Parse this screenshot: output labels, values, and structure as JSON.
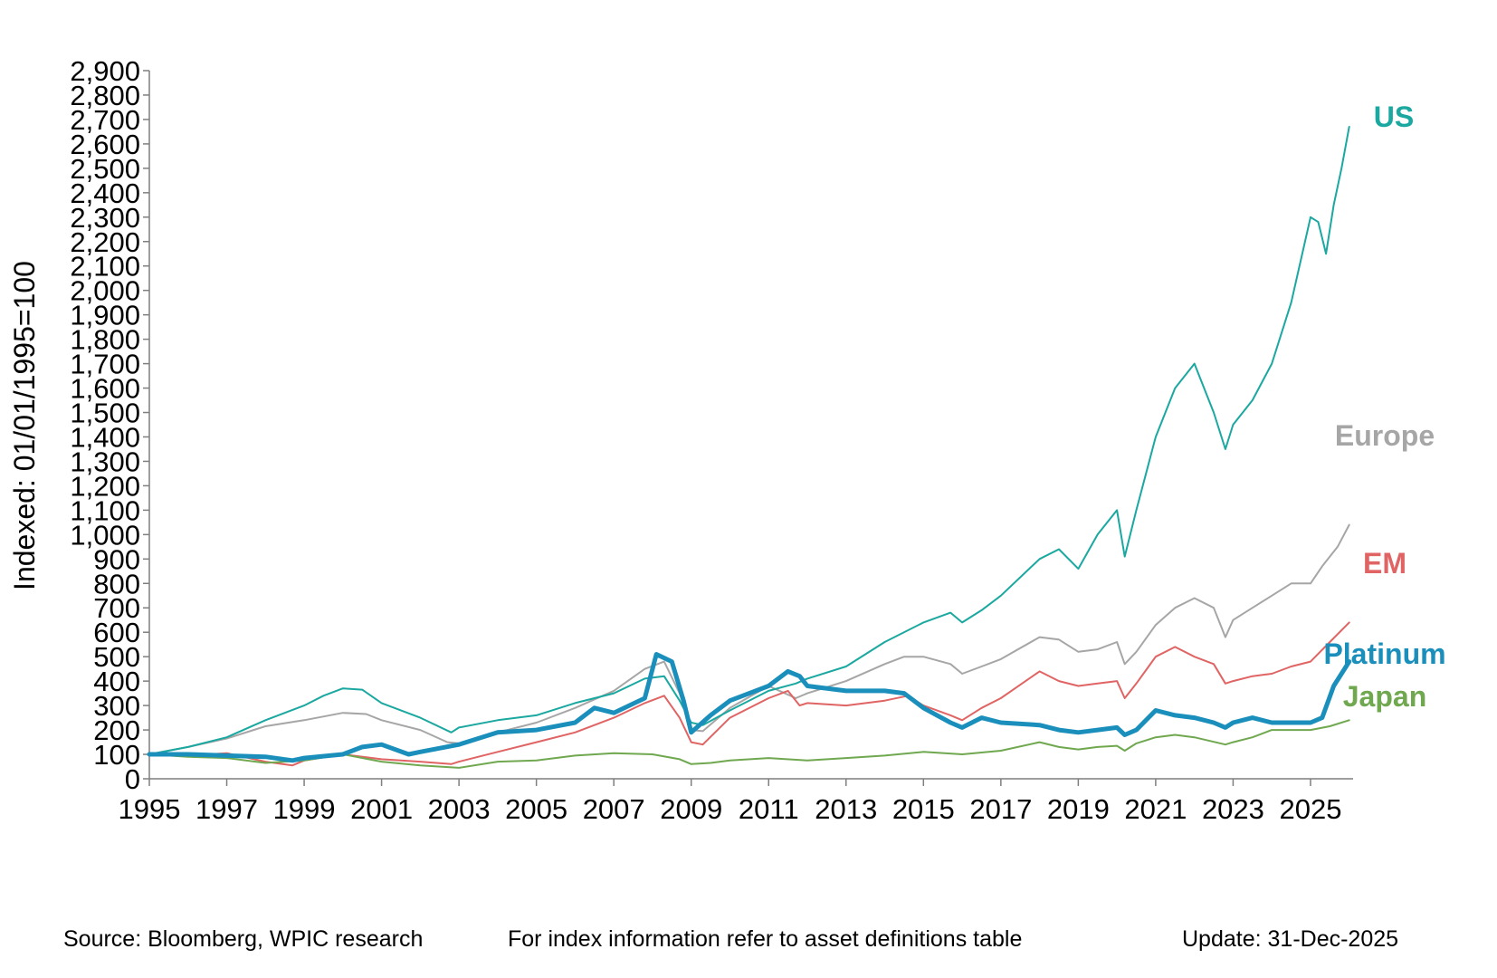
{
  "chart_data": {
    "type": "line",
    "title": "",
    "xlabel": "",
    "ylabel": "Indexed: 01/01/1995=100",
    "xlim": [
      1995,
      2026.1
    ],
    "ylim": [
      0,
      2900
    ],
    "x_ticks": [
      "1995",
      "1997",
      "1999",
      "2001",
      "2003",
      "2005",
      "2007",
      "2009",
      "2011",
      "2013",
      "2015",
      "2017",
      "2019",
      "2021",
      "2023",
      "2025"
    ],
    "y_ticks": [
      "0",
      "100",
      "200",
      "300",
      "400",
      "500",
      "600",
      "700",
      "800",
      "900",
      "1,000",
      "1,100",
      "1,200",
      "1,300",
      "1,400",
      "1,500",
      "1,600",
      "1,700",
      "1,800",
      "1,900",
      "2,000",
      "2,100",
      "2,200",
      "2,300",
      "2,400",
      "2,500",
      "2,600",
      "2,700",
      "2,800",
      "2,900"
    ],
    "legend_placement": "right-end labels",
    "series": [
      {
        "name": "Europe",
        "color": "#a6a6a6",
        "width": 2,
        "points": [
          [
            1995,
            100
          ],
          [
            1996,
            130
          ],
          [
            1997,
            165
          ],
          [
            1998,
            215
          ],
          [
            1999,
            240
          ],
          [
            2000,
            270
          ],
          [
            2000.6,
            265
          ],
          [
            2001,
            240
          ],
          [
            2002,
            200
          ],
          [
            2002.7,
            150
          ],
          [
            2003,
            145
          ],
          [
            2004,
            190
          ],
          [
            2005,
            230
          ],
          [
            2006,
            290
          ],
          [
            2007,
            360
          ],
          [
            2007.8,
            450
          ],
          [
            2008.3,
            480
          ],
          [
            2008.7,
            350
          ],
          [
            2009.0,
            200
          ],
          [
            2009.3,
            195
          ],
          [
            2010,
            290
          ],
          [
            2011,
            380
          ],
          [
            2011.7,
            330
          ],
          [
            2012,
            350
          ],
          [
            2013,
            400
          ],
          [
            2014,
            470
          ],
          [
            2014.5,
            500
          ],
          [
            2015,
            500
          ],
          [
            2015.7,
            470
          ],
          [
            2016,
            430
          ],
          [
            2016.5,
            460
          ],
          [
            2017,
            490
          ],
          [
            2018,
            580
          ],
          [
            2018.5,
            570
          ],
          [
            2019,
            520
          ],
          [
            2019.5,
            530
          ],
          [
            2020,
            560
          ],
          [
            2020.2,
            470
          ],
          [
            2020.5,
            520
          ],
          [
            2021,
            630
          ],
          [
            2021.5,
            700
          ],
          [
            2022,
            740
          ],
          [
            2022.5,
            700
          ],
          [
            2022.8,
            580
          ],
          [
            2023,
            650
          ],
          [
            2023.5,
            700
          ],
          [
            2024,
            750
          ],
          [
            2024.5,
            800
          ],
          [
            2025,
            800
          ],
          [
            2025.3,
            870
          ],
          [
            2025.7,
            950
          ],
          [
            2026,
            1040
          ]
        ]
      },
      {
        "name": "EM",
        "color": "#e06464",
        "width": 2,
        "points": [
          [
            1995,
            100
          ],
          [
            1996,
            95
          ],
          [
            1997,
            105
          ],
          [
            1998,
            70
          ],
          [
            1998.7,
            55
          ],
          [
            1999,
            75
          ],
          [
            2000,
            100
          ],
          [
            2001,
            80
          ],
          [
            2002,
            70
          ],
          [
            2002.8,
            60
          ],
          [
            2003,
            70
          ],
          [
            2004,
            110
          ],
          [
            2005,
            150
          ],
          [
            2006,
            190
          ],
          [
            2007,
            250
          ],
          [
            2007.8,
            310
          ],
          [
            2008.3,
            340
          ],
          [
            2008.7,
            250
          ],
          [
            2009.0,
            150
          ],
          [
            2009.3,
            140
          ],
          [
            2010,
            250
          ],
          [
            2011,
            330
          ],
          [
            2011.5,
            360
          ],
          [
            2011.8,
            300
          ],
          [
            2012,
            310
          ],
          [
            2013,
            300
          ],
          [
            2014,
            320
          ],
          [
            2014.6,
            340
          ],
          [
            2015,
            300
          ],
          [
            2015.7,
            260
          ],
          [
            2016,
            240
          ],
          [
            2016.5,
            290
          ],
          [
            2017,
            330
          ],
          [
            2018,
            440
          ],
          [
            2018.5,
            400
          ],
          [
            2019,
            380
          ],
          [
            2019.5,
            390
          ],
          [
            2020,
            400
          ],
          [
            2020.2,
            330
          ],
          [
            2020.5,
            390
          ],
          [
            2021,
            500
          ],
          [
            2021.5,
            540
          ],
          [
            2022,
            500
          ],
          [
            2022.5,
            470
          ],
          [
            2022.8,
            390
          ],
          [
            2023,
            400
          ],
          [
            2023.5,
            420
          ],
          [
            2024,
            430
          ],
          [
            2024.5,
            460
          ],
          [
            2025,
            480
          ],
          [
            2025.5,
            560
          ],
          [
            2026,
            640
          ]
        ]
      },
      {
        "name": "Japan",
        "color": "#70a850",
        "width": 2,
        "points": [
          [
            1995,
            100
          ],
          [
            1996,
            90
          ],
          [
            1997,
            85
          ],
          [
            1998,
            65
          ],
          [
            1999,
            75
          ],
          [
            2000,
            100
          ],
          [
            2001,
            70
          ],
          [
            2002,
            55
          ],
          [
            2003,
            45
          ],
          [
            2004,
            70
          ],
          [
            2005,
            75
          ],
          [
            2006,
            95
          ],
          [
            2007,
            105
          ],
          [
            2008,
            100
          ],
          [
            2008.7,
            80
          ],
          [
            2009.0,
            60
          ],
          [
            2009.5,
            65
          ],
          [
            2010,
            75
          ],
          [
            2011,
            85
          ],
          [
            2012,
            75
          ],
          [
            2013,
            85
          ],
          [
            2014,
            95
          ],
          [
            2015,
            110
          ],
          [
            2016,
            100
          ],
          [
            2017,
            115
          ],
          [
            2018,
            150
          ],
          [
            2018.5,
            130
          ],
          [
            2019,
            120
          ],
          [
            2019.5,
            130
          ],
          [
            2020,
            135
          ],
          [
            2020.2,
            115
          ],
          [
            2020.5,
            145
          ],
          [
            2021,
            170
          ],
          [
            2021.5,
            180
          ],
          [
            2022,
            170
          ],
          [
            2022.8,
            140
          ],
          [
            2023,
            150
          ],
          [
            2023.5,
            170
          ],
          [
            2024,
            200
          ],
          [
            2024.5,
            200
          ],
          [
            2025,
            200
          ],
          [
            2025.5,
            215
          ],
          [
            2026,
            240
          ]
        ]
      },
      {
        "name": "US",
        "color": "#1aa8a0",
        "width": 2,
        "points": [
          [
            1995,
            100
          ],
          [
            1996,
            130
          ],
          [
            1997,
            170
          ],
          [
            1998,
            240
          ],
          [
            1999,
            300
          ],
          [
            1999.5,
            340
          ],
          [
            2000,
            370
          ],
          [
            2000.5,
            365
          ],
          [
            2001,
            310
          ],
          [
            2002,
            250
          ],
          [
            2002.8,
            190
          ],
          [
            2003,
            210
          ],
          [
            2004,
            240
          ],
          [
            2005,
            260
          ],
          [
            2006,
            310
          ],
          [
            2007,
            350
          ],
          [
            2007.8,
            410
          ],
          [
            2008.3,
            420
          ],
          [
            2008.7,
            320
          ],
          [
            2009.0,
            230
          ],
          [
            2009.3,
            220
          ],
          [
            2010,
            280
          ],
          [
            2011,
            360
          ],
          [
            2011.7,
            390
          ],
          [
            2012,
            410
          ],
          [
            2013,
            460
          ],
          [
            2014,
            560
          ],
          [
            2015,
            640
          ],
          [
            2015.7,
            680
          ],
          [
            2016,
            640
          ],
          [
            2016.5,
            690
          ],
          [
            2017,
            750
          ],
          [
            2018,
            900
          ],
          [
            2018.5,
            940
          ],
          [
            2019,
            860
          ],
          [
            2019.5,
            1000
          ],
          [
            2020,
            1100
          ],
          [
            2020.2,
            910
          ],
          [
            2020.5,
            1100
          ],
          [
            2021,
            1400
          ],
          [
            2021.5,
            1600
          ],
          [
            2022,
            1700
          ],
          [
            2022.5,
            1500
          ],
          [
            2022.8,
            1350
          ],
          [
            2023,
            1450
          ],
          [
            2023.5,
            1550
          ],
          [
            2024,
            1700
          ],
          [
            2024.5,
            1950
          ],
          [
            2025,
            2300
          ],
          [
            2025.2,
            2280
          ],
          [
            2025.4,
            2150
          ],
          [
            2025.6,
            2350
          ],
          [
            2025.8,
            2500
          ],
          [
            2026,
            2670
          ]
        ]
      },
      {
        "name": "Platinum",
        "color": "#1a8fbc",
        "width": 5,
        "points": [
          [
            1995,
            100
          ],
          [
            1996,
            100
          ],
          [
            1997,
            95
          ],
          [
            1998,
            90
          ],
          [
            1998.7,
            75
          ],
          [
            1999,
            85
          ],
          [
            2000,
            100
          ],
          [
            2000.5,
            130
          ],
          [
            2001,
            140
          ],
          [
            2001.7,
            100
          ],
          [
            2002,
            110
          ],
          [
            2003,
            140
          ],
          [
            2004,
            190
          ],
          [
            2005,
            200
          ],
          [
            2006,
            230
          ],
          [
            2006.5,
            290
          ],
          [
            2007,
            270
          ],
          [
            2007.8,
            330
          ],
          [
            2008.1,
            510
          ],
          [
            2008.5,
            480
          ],
          [
            2008.8,
            320
          ],
          [
            2009.0,
            190
          ],
          [
            2009.5,
            260
          ],
          [
            2010,
            320
          ],
          [
            2011,
            380
          ],
          [
            2011.5,
            440
          ],
          [
            2011.8,
            420
          ],
          [
            2012,
            380
          ],
          [
            2013,
            360
          ],
          [
            2014,
            360
          ],
          [
            2014.5,
            350
          ],
          [
            2015,
            290
          ],
          [
            2015.7,
            230
          ],
          [
            2016,
            210
          ],
          [
            2016.5,
            250
          ],
          [
            2017,
            230
          ],
          [
            2018,
            220
          ],
          [
            2018.5,
            200
          ],
          [
            2019,
            190
          ],
          [
            2019.5,
            200
          ],
          [
            2020,
            210
          ],
          [
            2020.2,
            180
          ],
          [
            2020.5,
            200
          ],
          [
            2021,
            280
          ],
          [
            2021.5,
            260
          ],
          [
            2022,
            250
          ],
          [
            2022.5,
            230
          ],
          [
            2022.8,
            210
          ],
          [
            2023,
            230
          ],
          [
            2023.5,
            250
          ],
          [
            2024,
            230
          ],
          [
            2024.5,
            230
          ],
          [
            2025,
            230
          ],
          [
            2025.3,
            250
          ],
          [
            2025.6,
            380
          ],
          [
            2026,
            480
          ]
        ]
      }
    ],
    "annotations": [
      {
        "text": "US",
        "color": "#1aa8a0"
      },
      {
        "text": "Europe",
        "color": "#a6a6a6"
      },
      {
        "text": "EM",
        "color": "#e06464"
      },
      {
        "text": "Platinum",
        "color": "#1a8fbc"
      },
      {
        "text": "Japan",
        "color": "#70a850"
      }
    ]
  },
  "footer": {
    "source": "Source: Bloomberg, WPIC research",
    "note": "For index information refer to asset definitions table",
    "update": "Update: 31-Dec-2025"
  }
}
